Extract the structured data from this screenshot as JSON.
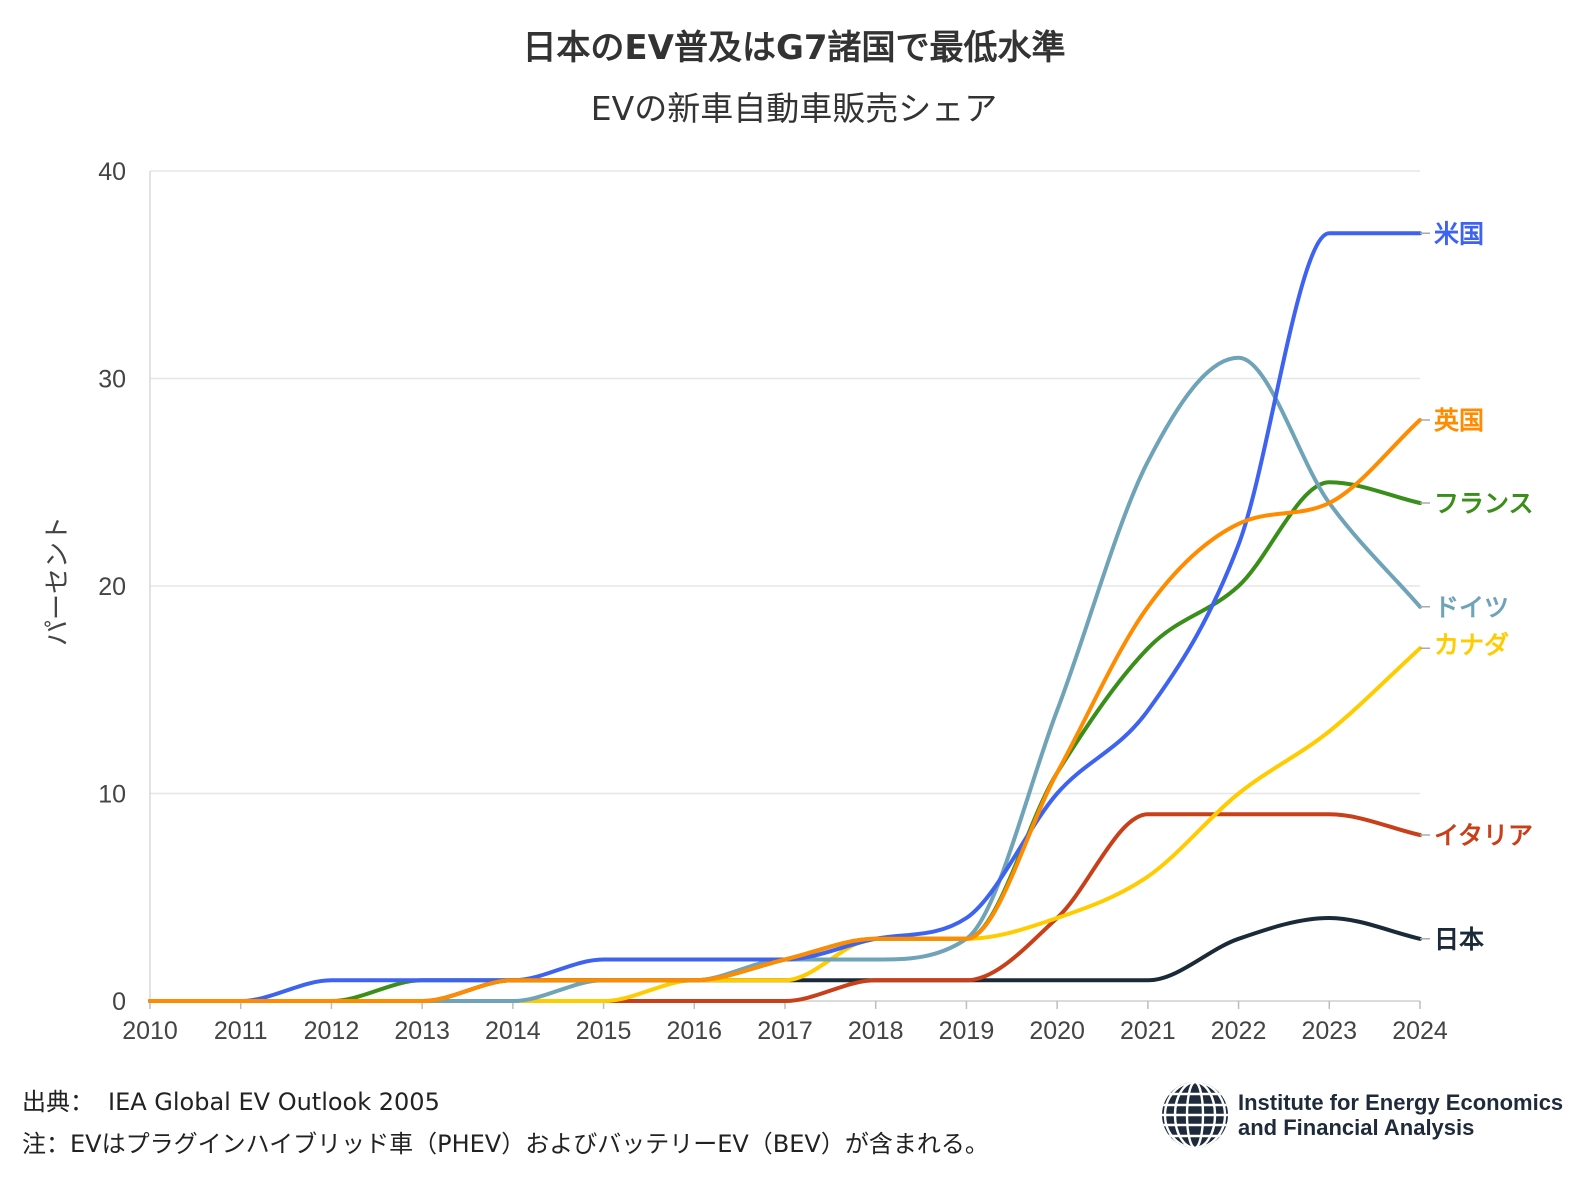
{
  "chart_data": {
    "type": "line",
    "title": "日本のEV普及はG7諸国で最低水準",
    "subtitle": "EVの新車自動車販売シェア",
    "ylabel": "パーセント",
    "xlabel": "",
    "ylim": [
      0,
      40
    ],
    "yticks": [
      "0",
      "10",
      "20",
      "30",
      "40"
    ],
    "x": [
      2010,
      2011,
      2012,
      2013,
      2014,
      2015,
      2016,
      2017,
      2018,
      2019,
      2020,
      2021,
      2022,
      2023,
      2024
    ],
    "xticks": [
      "2010",
      "2011",
      "2012",
      "2013",
      "2014",
      "2015",
      "2016",
      "2017",
      "2018",
      "2019",
      "2020",
      "2021",
      "2022",
      "2023",
      "2024"
    ],
    "grid": "horizontal",
    "legend": "direct labels at line ends (right)",
    "series": [
      {
        "name": "日本",
        "color": "#1b2a38",
        "values": [
          0,
          0,
          0,
          0,
          1,
          1,
          1,
          1,
          1,
          1,
          1,
          1,
          3,
          4,
          3
        ]
      },
      {
        "name": "イタリア",
        "color": "#c8401a",
        "values": [
          0,
          0,
          0,
          0,
          0,
          0,
          0,
          0,
          1,
          1,
          4,
          9,
          9,
          9,
          8
        ]
      },
      {
        "name": "カナダ",
        "color": "#ffcc00",
        "values": [
          0,
          0,
          0,
          0,
          0,
          0,
          1,
          1,
          3,
          3,
          4,
          6,
          10,
          13,
          17
        ]
      },
      {
        "name": "フランス",
        "color": "#3a8f1a",
        "values": [
          0,
          0,
          0,
          1,
          1,
          1,
          1,
          2,
          3,
          3,
          11,
          17,
          20,
          25,
          24
        ]
      },
      {
        "name": "ドイツ",
        "color": "#6fa3b8",
        "values": [
          0,
          0,
          0,
          0,
          0,
          1,
          1,
          2,
          2,
          3,
          14,
          26,
          31,
          24,
          19
        ]
      },
      {
        "name": "米国",
        "color": "#3d63f0",
        "values": [
          0,
          0,
          1,
          1,
          1,
          2,
          2,
          2,
          3,
          4,
          10,
          14,
          22,
          37,
          37
        ]
      },
      {
        "name": "英国",
        "color": "#ff8c00",
        "values": [
          0,
          0,
          0,
          0,
          1,
          1,
          1,
          2,
          3,
          3,
          11,
          19,
          23,
          24,
          28
        ]
      }
    ]
  },
  "footer": {
    "source_label": "出典：",
    "source_text": "IEA Global EV Outlook 2005",
    "note": "注：EVはプラグインハイブリッド車（PHEV）およびバッテリーEV（BEV）が含まれる。"
  },
  "logo": {
    "line1": "Institute for Energy Economics",
    "line2": "and Financial Analysis",
    "icon": "globe-icon"
  }
}
